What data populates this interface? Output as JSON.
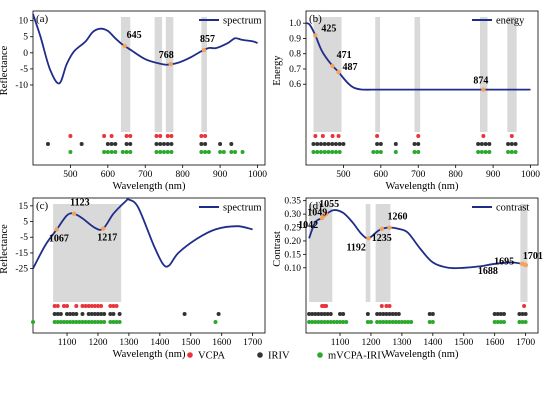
{
  "legend": {
    "items": [
      {
        "label": "VCPA",
        "color": "#e8343a"
      },
      {
        "label": "IRIV",
        "color": "#333333"
      },
      {
        "label": "mVCPA-IRIV",
        "color": "#2ca82c"
      }
    ]
  },
  "chart_data": [
    {
      "panel": "(a)",
      "type": "line",
      "title": "",
      "series": [
        {
          "name": "spectrum",
          "color": "#1f2d8a"
        }
      ],
      "xlabel": "Wavelength (nm)",
      "ylabel": "Reflectance",
      "xlim": [
        400,
        1020
      ],
      "xticks": [
        500,
        600,
        700,
        800,
        900,
        1000
      ],
      "ylim": [
        -24,
        13
      ],
      "yticks": [
        -10,
        -5,
        0,
        5,
        10
      ],
      "x": [
        400,
        420,
        445,
        470,
        490,
        510,
        540,
        560,
        580,
        600,
        620,
        640,
        660,
        700,
        740,
        760,
        790,
        820,
        850,
        870,
        890,
        920,
        940,
        960,
        990,
        1000
      ],
      "y": [
        12,
        5,
        -5,
        -9.5,
        -3.5,
        0.5,
        3.5,
        6.5,
        7.5,
        6.8,
        4.5,
        2.5,
        1,
        -2,
        -3.4,
        -3.7,
        -3,
        -1.5,
        0.5,
        1.5,
        1.5,
        3,
        4.5,
        4,
        3.5,
        3
      ],
      "shaded_bands": [
        [
          635,
          660
        ],
        [
          725,
          745
        ],
        [
          755,
          775
        ],
        [
          850,
          865
        ]
      ],
      "annotations": [
        {
          "label": "645",
          "x": 645
        },
        {
          "label": "768",
          "x": 768
        },
        {
          "label": "857",
          "x": 857
        }
      ],
      "markers": {
        "VCPA": [
          500,
          590,
          610,
          650,
          660,
          730,
          740,
          760,
          770,
          850,
          860
        ],
        "IRIV": [
          440,
          530,
          600,
          610,
          620,
          650,
          660,
          730,
          740,
          750,
          760,
          770,
          850,
          860,
          900,
          930
        ],
        "mVCPA-IRIV": [
          500,
          590,
          600,
          610,
          620,
          640,
          650,
          660,
          730,
          740,
          750,
          760,
          770,
          850,
          860,
          870,
          900,
          910,
          930,
          940,
          960
        ]
      }
    },
    {
      "panel": "(b)",
      "type": "line",
      "title": "",
      "series": [
        {
          "name": "energy",
          "color": "#1f2d8a"
        }
      ],
      "xlabel": "Wavelength (nm)",
      "ylabel": "Energy",
      "xlim": [
        400,
        1020
      ],
      "xticks": [
        500,
        600,
        700,
        800,
        900,
        1000
      ],
      "ylim": [
        0.3,
        1.08
      ],
      "yticks": [
        0.6,
        0.7,
        0.8,
        0.9,
        1.0
      ],
      "x": [
        400,
        410,
        425,
        440,
        455,
        471,
        487,
        500,
        515,
        530,
        550,
        600,
        700,
        800,
        900,
        1000
      ],
      "y": [
        1.0,
        0.99,
        0.92,
        0.83,
        0.77,
        0.72,
        0.68,
        0.64,
        0.6,
        0.575,
        0.565,
        0.565,
        0.565,
        0.565,
        0.565,
        0.565
      ],
      "shaded_bands": [
        [
          420,
          495
        ],
        [
          585,
          598
        ],
        [
          690,
          705
        ],
        [
          865,
          885
        ],
        [
          938,
          963
        ]
      ],
      "annotations": [
        {
          "label": "425",
          "x": 425
        },
        {
          "label": "471",
          "x": 471
        },
        {
          "label": "487",
          "x": 487
        },
        {
          "label": "874",
          "x": 874
        }
      ],
      "markers": {
        "VCPA": [
          425,
          445,
          471,
          487,
          590,
          700,
          874,
          950
        ],
        "IRIV": [
          420,
          430,
          440,
          450,
          460,
          470,
          480,
          490,
          500,
          590,
          600,
          640,
          690,
          700,
          860,
          870,
          880,
          890,
          940,
          950,
          960
        ],
        "mVCPA-IRIV": [
          420,
          430,
          440,
          450,
          460,
          470,
          480,
          490,
          580,
          590,
          600,
          640,
          690,
          700,
          860,
          870,
          880,
          890,
          940,
          950,
          960
        ]
      }
    },
    {
      "panel": "(c)",
      "type": "line",
      "title": "",
      "series": [
        {
          "name": "spectrum",
          "color": "#1f2d8a"
        }
      ],
      "xlabel": "Wavelength (nm)",
      "ylabel": "Reflectance",
      "xlim": [
        990,
        1740
      ],
      "xticks": [
        1100,
        1200,
        1300,
        1400,
        1500,
        1600,
        1700
      ],
      "ylim": [
        -45,
        20
      ],
      "yticks": [
        -25,
        -15,
        -5,
        5,
        15
      ],
      "x": [
        990,
        1030,
        1067,
        1100,
        1123,
        1150,
        1190,
        1217,
        1250,
        1290,
        1300,
        1330,
        1380,
        1410,
        1430,
        1460,
        1520,
        1580,
        1650,
        1700
      ],
      "y": [
        -25,
        -10,
        0,
        9,
        10,
        7,
        1,
        0.5,
        10,
        18,
        19,
        14,
        -10,
        -22,
        -23,
        -15,
        -6,
        0,
        2,
        0
      ],
      "shaded_bands": [
        [
          1055,
          1275
        ]
      ],
      "annotations": [
        {
          "label": "1067",
          "x": 1067
        },
        {
          "label": "1123",
          "x": 1123
        },
        {
          "label": "1217",
          "x": 1217
        }
      ],
      "markers": {
        "VCPA": [
          1060,
          1070,
          1090,
          1100,
          1130,
          1150,
          1160,
          1170,
          1180,
          1190,
          1200,
          1210,
          1240,
          1250,
          1260
        ],
        "IRIV": [
          1060,
          1070,
          1080,
          1100,
          1110,
          1120,
          1130,
          1150,
          1170,
          1180,
          1190,
          1200,
          1210,
          1220,
          1240,
          1250,
          1270,
          1480,
          1590
        ],
        "mVCPA-IRIV": [
          990,
          1060,
          1070,
          1080,
          1090,
          1100,
          1110,
          1120,
          1130,
          1140,
          1150,
          1160,
          1170,
          1180,
          1190,
          1200,
          1210,
          1220,
          1240,
          1250,
          1260,
          1270,
          1580
        ]
      }
    },
    {
      "panel": "(d)",
      "type": "line",
      "title": "",
      "series": [
        {
          "name": "contrast",
          "color": "#1f2d8a"
        }
      ],
      "xlabel": "Wavelength (nm)",
      "ylabel": "Contrast",
      "xlim": [
        990,
        1740
      ],
      "xticks": [
        1100,
        1200,
        1300,
        1400,
        1500,
        1600,
        1700
      ],
      "ylim": [
        -0.02,
        0.36
      ],
      "yticks": [
        0.1,
        0.15,
        0.2,
        0.25,
        0.3,
        0.35
      ],
      "x": [
        1000,
        1020,
        1042,
        1049,
        1055,
        1080,
        1110,
        1140,
        1170,
        1192,
        1220,
        1235,
        1260,
        1290,
        1320,
        1360,
        1400,
        1450,
        1500,
        1550,
        1600,
        1650,
        1688,
        1695,
        1701
      ],
      "y": [
        0.21,
        0.27,
        0.285,
        0.295,
        0.3,
        0.315,
        0.305,
        0.27,
        0.225,
        0.21,
        0.235,
        0.245,
        0.25,
        0.245,
        0.23,
        0.17,
        0.12,
        0.1,
        0.1,
        0.105,
        0.115,
        0.12,
        0.115,
        0.113,
        0.11
      ],
      "shaded_bands": [
        [
          1000,
          1075
        ],
        [
          1183,
          1198
        ],
        [
          1215,
          1263
        ],
        [
          1683,
          1706
        ]
      ],
      "annotations": [
        {
          "label": "1055",
          "x": 1055
        },
        {
          "label": "1049",
          "x": 1049
        },
        {
          "label": "1042",
          "x": 1042
        },
        {
          "label": "1192",
          "x": 1192
        },
        {
          "label": "1235",
          "x": 1235
        },
        {
          "label": "1260",
          "x": 1260
        },
        {
          "label": "1701",
          "x": 1701
        },
        {
          "label": "1695",
          "x": 1695
        },
        {
          "label": "1688",
          "x": 1688
        }
      ],
      "markers": {
        "VCPA": [
          1042,
          1049,
          1055,
          1235,
          1250,
          1260,
          1695
        ],
        "IRIV": [
          1000,
          1010,
          1020,
          1030,
          1040,
          1050,
          1060,
          1070,
          1100,
          1110,
          1190,
          1220,
          1230,
          1240,
          1250,
          1260,
          1270,
          1280,
          1290,
          1390,
          1400,
          1600,
          1610,
          1620,
          1630,
          1680,
          1690,
          1700
        ],
        "mVCPA-IRIV": [
          1000,
          1010,
          1020,
          1030,
          1040,
          1050,
          1060,
          1070,
          1080,
          1090,
          1100,
          1110,
          1120,
          1190,
          1200,
          1220,
          1230,
          1240,
          1250,
          1260,
          1270,
          1280,
          1290,
          1300,
          1310,
          1320,
          1330,
          1390,
          1400,
          1600,
          1610,
          1620,
          1630,
          1680,
          1690,
          1700
        ]
      }
    }
  ]
}
